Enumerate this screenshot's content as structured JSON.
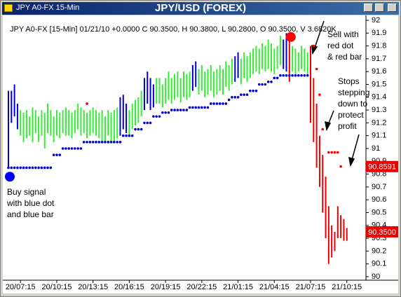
{
  "window": {
    "left_title": "JPY A0-FX 15-Min",
    "title": "JPY/USD (FOREX)"
  },
  "chart_data": {
    "type": "ohlc",
    "header": "JPY A0-FX [15-Min] 01/21/10 +0.0000 C 90.3500, H 90.3800, L 90.2800, O 90.3500, V 3.6820K",
    "categories": [
      null,
      null,
      null,
      null,
      "20/07:15",
      null,
      null,
      null,
      null,
      null,
      null,
      null,
      null,
      null,
      null,
      null,
      "20/10:15",
      null,
      null,
      null,
      null,
      null,
      null,
      null,
      null,
      null,
      null,
      null,
      "20/13:15",
      null,
      null,
      null,
      null,
      null,
      null,
      null,
      null,
      null,
      null,
      null,
      "20/16:15",
      null,
      null,
      null,
      null,
      null,
      null,
      null,
      null,
      null,
      null,
      null,
      "20/19:15",
      null,
      null,
      null,
      null,
      null,
      null,
      null,
      null,
      null,
      null,
      null,
      "20/22:15",
      null,
      null,
      null,
      null,
      null,
      null,
      null,
      null,
      null,
      null,
      null,
      "21/01:15",
      null,
      null,
      null,
      null,
      null,
      null,
      null,
      null,
      null,
      null,
      null,
      "21/04:15",
      null,
      null,
      null,
      null,
      null,
      null,
      null,
      null,
      null,
      null,
      null,
      "21/07:15",
      null,
      null,
      null,
      null,
      null,
      null,
      null,
      null,
      null,
      null,
      null,
      "21/10:15"
    ],
    "bars": {
      "high": [
        91.45,
        91.45,
        91.5,
        91.35,
        91.3,
        91.28,
        91.3,
        91.25,
        91.32,
        91.3,
        91.25,
        91.3,
        91.28,
        91.35,
        91.3,
        91.25,
        91.3,
        91.28,
        91.3,
        91.32,
        91.3,
        91.28,
        91.3,
        91.35,
        91.32,
        91.3,
        91.28,
        91.3,
        91.32,
        91.3,
        91.28,
        91.3,
        91.25,
        91.3,
        91.28,
        91.3,
        91.32,
        91.4,
        91.42,
        91.35,
        91.3,
        91.35,
        91.38,
        91.4,
        91.45,
        91.55,
        91.6,
        91.55,
        91.5,
        91.55,
        91.55,
        91.5,
        91.55,
        91.6,
        91.55,
        91.58,
        91.6,
        91.55,
        91.6,
        91.58,
        91.6,
        91.65,
        91.68,
        91.62,
        91.65,
        91.6,
        91.62,
        91.65,
        91.6,
        91.62,
        91.65,
        91.62,
        91.68,
        91.65,
        91.7,
        91.72,
        91.75,
        91.7,
        91.75,
        91.72,
        91.75,
        91.78,
        91.8,
        91.78,
        91.82,
        91.8,
        91.85,
        91.82,
        91.78,
        91.8,
        91.88,
        91.85,
        91.9,
        91.87,
        91.8,
        91.78,
        91.75,
        91.8,
        91.78,
        91.75,
        91.8,
        91.55,
        91.35,
        91.1,
        90.95,
        90.78,
        90.55,
        90.4,
        90.35,
        90.55,
        90.48,
        90.45,
        90.38
      ],
      "low": [
        90.85,
        91.2,
        91.25,
        91.15,
        91.1,
        91.05,
        91.08,
        91.1,
        91.05,
        91.12,
        91.05,
        91.1,
        91.0,
        91.12,
        91.1,
        91.05,
        91.1,
        91.08,
        91.12,
        91.1,
        91.1,
        91.08,
        91.12,
        91.15,
        91.1,
        91.12,
        91.08,
        91.1,
        91.12,
        91.1,
        91.08,
        91.05,
        91.06,
        91.1,
        91.06,
        91.05,
        91.08,
        91.1,
        91.15,
        91.12,
        91.1,
        91.15,
        91.18,
        91.2,
        91.25,
        91.3,
        91.35,
        91.3,
        91.32,
        91.35,
        91.35,
        91.32,
        91.35,
        91.38,
        91.35,
        91.38,
        91.4,
        91.36,
        91.4,
        91.38,
        91.4,
        91.45,
        91.48,
        91.42,
        91.45,
        91.4,
        91.42,
        91.45,
        91.4,
        91.42,
        91.45,
        91.42,
        91.48,
        91.45,
        91.5,
        91.52,
        91.55,
        91.5,
        91.55,
        91.52,
        91.55,
        91.58,
        91.6,
        91.58,
        91.62,
        91.6,
        91.62,
        91.6,
        91.58,
        91.62,
        91.65,
        91.62,
        91.6,
        91.52,
        91.6,
        91.58,
        91.6,
        91.62,
        91.6,
        91.58,
        91.2,
        91.05,
        90.85,
        90.7,
        90.5,
        90.3,
        90.1,
        90.15,
        90.2,
        90.3,
        90.3,
        90.28,
        90.28
      ],
      "colors": [
        "#0000d0",
        "#0000d0",
        "#0000d0",
        "#0000d0",
        "#33ee33",
        "#33ee33",
        "#33ee33",
        "#33ee33",
        "#33ee33",
        "#33ee33",
        "#33ee33",
        "#33ee33",
        "#33ee33",
        "#33ee33",
        "#33ee33",
        "#33ee33",
        "#33ee33",
        "#33ee33",
        "#33ee33",
        "#33ee33",
        "#33ee33",
        "#33ee33",
        "#33ee33",
        "#33ee33",
        "#33ee33",
        "#33ee33",
        "#33ee33",
        "#33ee33",
        "#33ee33",
        "#33ee33",
        "#33ee33",
        "#33ee33",
        "#33ee33",
        "#33ee33",
        "#33ee33",
        "#33ee33",
        "#33ee33",
        "#0000d0",
        "#0000d0",
        "#0000d0",
        "#33ee33",
        "#33ee33",
        "#33ee33",
        "#33ee33",
        "#33ee33",
        "#0000d0",
        "#0000d0",
        "#0000d0",
        "#0000d0",
        "#33ee33",
        "#33ee33",
        "#33ee33",
        "#33ee33",
        "#33ee33",
        "#33ee33",
        "#33ee33",
        "#33ee33",
        "#33ee33",
        "#33ee33",
        "#33ee33",
        "#33ee33",
        "#0000d0",
        "#0000d0",
        "#33ee33",
        "#33ee33",
        "#33ee33",
        "#33ee33",
        "#33ee33",
        "#33ee33",
        "#33ee33",
        "#33ee33",
        "#33ee33",
        "#33ee33",
        "#33ee33",
        "#33ee33",
        "#0000d0",
        "#0000d0",
        "#33ee33",
        "#33ee33",
        "#33ee33",
        "#33ee33",
        "#33ee33",
        "#33ee33",
        "#33ee33",
        "#33ee33",
        "#33ee33",
        "#33ee33",
        "#33ee33",
        "#33ee33",
        "#33ee33",
        "#33ee33",
        "#0000d0",
        "#0000d0",
        "#ee0000",
        "#33ee33",
        "#33ee33",
        "#33ee33",
        "#33ee33",
        "#33ee33",
        "#33ee33",
        "#ee0000",
        "#ee0000",
        "#ee0000",
        "#ee0000",
        "#ee0000",
        "#ee0000",
        "#ee0000",
        "#ee0000",
        "#ee0000",
        "#ee0000",
        "#ee0000",
        "#ee0000",
        "#ee0000"
      ]
    },
    "stop_series": [
      {
        "color": "#0000d0",
        "values": [
          90.85,
          90.85,
          90.85,
          90.85,
          90.85,
          90.85,
          90.85,
          90.85,
          90.85,
          90.85,
          90.85,
          90.85,
          90.85,
          90.85,
          90.85,
          90.95,
          90.95,
          90.95,
          91.0,
          91.0,
          91.0,
          91.0,
          91.0,
          91.0,
          91.0,
          91.05,
          91.05,
          91.05,
          91.05,
          91.05,
          91.05,
          91.05,
          91.05,
          91.05,
          91.05,
          91.05,
          91.05,
          91.05,
          91.1,
          91.1,
          91.1,
          91.1,
          91.15,
          91.15,
          91.15,
          91.2,
          91.2,
          91.2,
          91.25,
          91.25,
          91.25,
          91.28,
          91.28,
          91.28,
          91.3,
          91.3,
          91.3,
          91.3,
          91.3,
          91.3,
          91.32,
          91.32,
          91.32,
          91.32,
          91.32,
          91.32,
          91.32,
          91.35,
          91.35,
          91.35,
          91.35,
          91.35,
          91.35,
          91.38,
          91.4,
          91.4,
          91.4,
          91.42,
          91.42,
          91.42,
          91.45,
          91.45,
          91.45,
          91.5,
          91.5,
          91.5,
          91.52,
          91.52,
          91.55,
          91.55,
          91.57,
          91.57,
          91.57,
          91.57,
          91.57,
          91.57,
          91.57,
          91.57,
          91.57,
          91.57,
          null,
          null,
          null,
          null,
          null,
          null,
          null,
          null,
          null,
          null,
          null,
          null,
          null
        ]
      },
      {
        "color": "#ee0000",
        "values": [
          null,
          null,
          null,
          null,
          null,
          null,
          null,
          null,
          null,
          null,
          null,
          null,
          null,
          null,
          null,
          null,
          null,
          null,
          null,
          null,
          null,
          null,
          null,
          null,
          null,
          null,
          91.35,
          null,
          null,
          null,
          null,
          null,
          null,
          null,
          null,
          null,
          null,
          null,
          null,
          null,
          null,
          null,
          null,
          null,
          null,
          null,
          null,
          null,
          null,
          null,
          null,
          null,
          null,
          null,
          null,
          null,
          null,
          null,
          null,
          null,
          null,
          null,
          null,
          null,
          null,
          null,
          null,
          null,
          null,
          null,
          null,
          null,
          null,
          null,
          null,
          null,
          null,
          null,
          null,
          null,
          null,
          null,
          null,
          null,
          null,
          null,
          null,
          null,
          null,
          null,
          null,
          null,
          null,
          null,
          null,
          null,
          null,
          null,
          null,
          null,
          null,
          91.8,
          91.62,
          91.42,
          91.15,
          null,
          90.97,
          90.97,
          90.97,
          90.97,
          90.86,
          null,
          null
        ]
      }
    ],
    "signal_series": [
      {
        "color": "#0000ff",
        "values": [
          90.78,
          null,
          null,
          null,
          null,
          null,
          null,
          null,
          null,
          null,
          null,
          null,
          null,
          null,
          null,
          null,
          null,
          null,
          null,
          null,
          null,
          null,
          null,
          null,
          null,
          null,
          null,
          null,
          null,
          null,
          null,
          null,
          null,
          null,
          null,
          null,
          null,
          null,
          null,
          null,
          null,
          null,
          null,
          null,
          null,
          null,
          null,
          null,
          null,
          null,
          null,
          null,
          null,
          null,
          null,
          null,
          null,
          null,
          null,
          null,
          null,
          null,
          null,
          null,
          null,
          null,
          null,
          null,
          null,
          null,
          null,
          null,
          null,
          null,
          null,
          null,
          null,
          null,
          null,
          null,
          null,
          null,
          null,
          null,
          null,
          null,
          null,
          null,
          null,
          null,
          null,
          null,
          null,
          null,
          null,
          null,
          null,
          null,
          null,
          null,
          null,
          null,
          null,
          null,
          null,
          null,
          null,
          null,
          null,
          null,
          null,
          null,
          null
        ]
      },
      {
        "color": "#ff0000",
        "values": [
          null,
          null,
          null,
          null,
          null,
          null,
          null,
          null,
          null,
          null,
          null,
          null,
          null,
          null,
          null,
          null,
          null,
          null,
          null,
          null,
          null,
          null,
          null,
          null,
          null,
          null,
          null,
          null,
          null,
          null,
          null,
          null,
          null,
          null,
          null,
          null,
          null,
          null,
          null,
          null,
          null,
          null,
          null,
          null,
          null,
          null,
          null,
          null,
          null,
          null,
          null,
          null,
          null,
          null,
          null,
          null,
          null,
          null,
          null,
          null,
          null,
          null,
          null,
          null,
          null,
          null,
          null,
          null,
          null,
          null,
          null,
          null,
          null,
          null,
          null,
          null,
          null,
          null,
          null,
          null,
          null,
          null,
          null,
          null,
          null,
          null,
          null,
          null,
          null,
          null,
          null,
          null,
          null,
          91.87,
          null,
          null,
          null,
          null,
          null,
          null,
          null,
          null,
          null,
          null,
          null,
          null,
          null,
          null,
          null,
          null,
          null,
          null,
          null
        ]
      }
    ],
    "price_labels": [
      90.8591,
      {
        "value": 90.35,
        "label": "90.3500"
      }
    ],
    "price_label_color": "#ee0000",
    "ylim": [
      90,
      92
    ],
    "yticks": [
      90,
      90.1,
      90.2,
      90.3,
      90.4,
      90.5,
      90.6,
      90.7,
      90.8,
      90.9,
      91,
      91.1,
      91.2,
      91.3,
      91.4,
      91.5,
      91.6,
      91.7,
      91.8,
      91.9,
      92
    ],
    "annotations": [
      {
        "lines": [
          "Buy signal",
          "with blue dot",
          "and blue bar"
        ]
      },
      {
        "lines": [
          "Sell with",
          "red dot",
          "& red bar"
        ]
      },
      {
        "lines": [
          "Stops",
          "stepping",
          "down to",
          "protect",
          "profit"
        ]
      }
    ]
  }
}
